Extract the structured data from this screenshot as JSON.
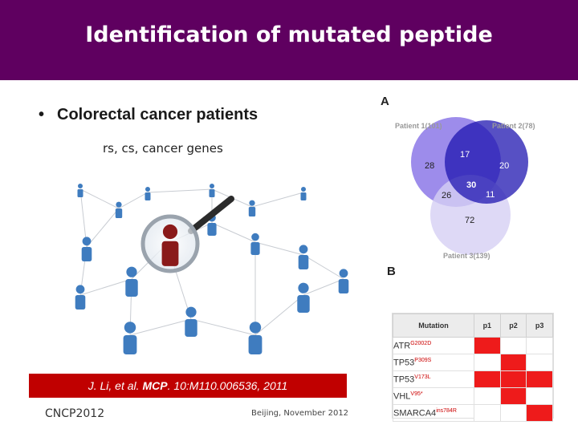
{
  "slide": {
    "title": "Identification of mutated peptide",
    "bullet": "Colorectal cancer patients",
    "subtext": "rs, cs, cancer genes",
    "citation": {
      "author": "J. Li",
      "rest": ", et al. ",
      "journal": "MCP",
      "ref": ". 10:M110.006536, 2011"
    },
    "footer_left": "CNCP2012",
    "footer_center": "Beijing, November 2012"
  },
  "colors": {
    "header": "#5f0060",
    "citation_bar": "#c00000",
    "venn_patient1": "#8c78e8",
    "venn_patient2": "#1f15b0",
    "venn_patient3": "#d6d0f4",
    "mutation_mark": "#ee1b1b"
  },
  "panel_a": {
    "label": "A",
    "patient1": "Patient 1(101)",
    "patient2": "Patient 2(78)",
    "patient3": "Patient 3(139)",
    "regions": {
      "only1": "28",
      "p1_p2": "17",
      "only2": "20",
      "all": "30",
      "p1_p3": "26",
      "p2_p3": "11",
      "only3": "72"
    }
  },
  "panel_b": {
    "label": "B",
    "columns": [
      "Mutation",
      "p1",
      "p2",
      "p3"
    ],
    "rows": [
      {
        "gene": "ATR",
        "mutation": "G2002D",
        "marks": [
          true,
          false,
          false
        ]
      },
      {
        "gene": "TP53",
        "mutation": "P309S",
        "marks": [
          false,
          true,
          false
        ]
      },
      {
        "gene": "TP53",
        "mutation": "V173L",
        "marks": [
          true,
          true,
          true
        ]
      },
      {
        "gene": "VHL",
        "mutation": "V95*",
        "marks": [
          false,
          true,
          false
        ]
      },
      {
        "gene": "SMARCA4",
        "mutation": "ins784R",
        "marks": [
          false,
          false,
          true
        ]
      }
    ]
  }
}
